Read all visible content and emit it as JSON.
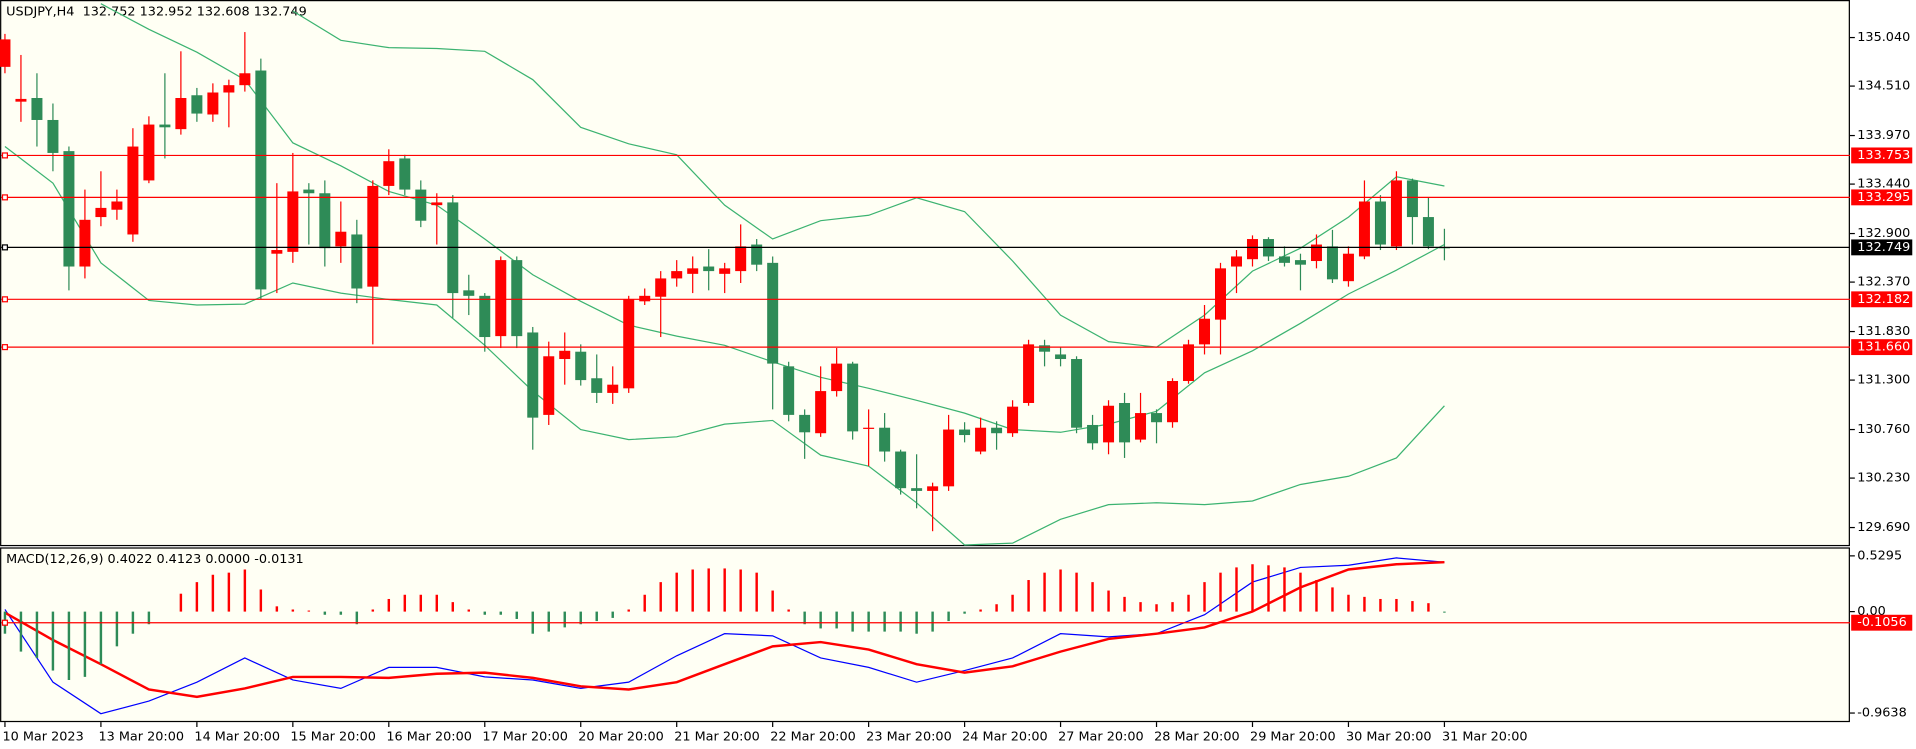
{
  "chart_data": [
    {
      "type": "candlestick",
      "title": "USDJPY,H4  132.752 132.952 132.608 132.749",
      "categories": [
        "10 Mar 2023",
        null,
        null,
        null,
        null,
        null,
        "13 Mar 20:00",
        null,
        null,
        null,
        null,
        null,
        "14 Mar 20:00",
        null,
        null,
        null,
        null,
        null,
        "15 Mar 20:00",
        null,
        null,
        null,
        null,
        null,
        "16 Mar 20:00",
        null,
        null,
        null,
        null,
        null,
        "17 Mar 20:00",
        null,
        null,
        null,
        null,
        null,
        "20 Mar 20:00",
        null,
        null,
        null,
        null,
        null,
        "21 Mar 20:00",
        null,
        null,
        null,
        null,
        null,
        "22 Mar 20:00",
        null,
        null,
        null,
        null,
        null,
        "23 Mar 20:00",
        null,
        null,
        null,
        null,
        null,
        "24 Mar 20:00",
        null,
        null,
        null,
        null,
        null,
        "27 Mar 20:00",
        null,
        null,
        null,
        null,
        null,
        "28 Mar 20:00",
        null,
        null,
        null,
        null,
        null,
        "29 Mar 20:00",
        null,
        null,
        null,
        null,
        null,
        "30 Mar 20:00",
        null,
        null,
        null,
        null,
        null,
        "31 Mar 20:00"
      ],
      "open": [
        134.72,
        134.34,
        134.38,
        134.14,
        133.8,
        132.54,
        133.08,
        133.16,
        132.89,
        133.48,
        134.09,
        134.04,
        134.41,
        134.2,
        134.44,
        134.52,
        134.68,
        132.68,
        132.7,
        133.38,
        133.34,
        132.76,
        132.89,
        132.32,
        133.42,
        133.72,
        133.38,
        133.21,
        133.24,
        132.28,
        132.22,
        131.78,
        132.61,
        131.82,
        130.92,
        131.53,
        131.61,
        131.32,
        131.16,
        131.21,
        132.16,
        132.21,
        132.41,
        132.46,
        132.54,
        132.46,
        132.49,
        132.78,
        132.58,
        131.45,
        130.92,
        130.72,
        131.18,
        131.48,
        130.77,
        130.78,
        130.52,
        130.12,
        130.09,
        130.14,
        130.76,
        130.52,
        130.78,
        130.72,
        131.05,
        131.68,
        131.58,
        131.53,
        130.81,
        130.62,
        131.05,
        130.65,
        130.94,
        130.84,
        131.29,
        131.69,
        131.96,
        132.54,
        132.62,
        132.84,
        132.65,
        132.61,
        132.6,
        132.76,
        132.38,
        132.65,
        133.25,
        132.76,
        133.48,
        133.08,
        132.752
      ],
      "high": [
        135.08,
        134.85,
        134.65,
        134.32,
        133.85,
        133.38,
        133.58,
        133.38,
        134.05,
        134.18,
        134.65,
        134.89,
        134.49,
        134.54,
        134.58,
        135.1,
        134.81,
        133.45,
        133.78,
        133.45,
        133.48,
        133.25,
        133.05,
        133.48,
        133.82,
        133.76,
        133.48,
        133.34,
        133.32,
        132.45,
        132.25,
        132.65,
        132.65,
        131.88,
        131.72,
        131.82,
        131.69,
        131.58,
        131.45,
        132.22,
        132.3,
        132.49,
        132.61,
        132.65,
        132.73,
        132.58,
        133.0,
        132.84,
        132.65,
        131.5,
        130.98,
        131.45,
        131.65,
        131.5,
        130.98,
        130.94,
        130.54,
        130.49,
        130.18,
        130.92,
        130.84,
        130.89,
        130.85,
        131.08,
        131.74,
        131.74,
        131.66,
        131.56,
        130.92,
        131.08,
        131.16,
        131.16,
        130.98,
        131.32,
        131.74,
        132.12,
        132.58,
        132.72,
        132.88,
        132.86,
        132.76,
        132.68,
        132.89,
        132.94,
        132.76,
        133.48,
        133.32,
        133.58,
        133.5,
        133.29,
        132.952
      ],
      "low": [
        134.65,
        134.12,
        133.85,
        133.58,
        132.28,
        132.41,
        132.98,
        133.05,
        132.81,
        133.45,
        133.72,
        133.98,
        134.12,
        134.12,
        134.06,
        134.45,
        132.18,
        132.25,
        132.58,
        132.78,
        132.54,
        132.58,
        132.14,
        131.69,
        133.32,
        133.32,
        132.97,
        132.78,
        131.98,
        132.01,
        131.61,
        131.65,
        131.65,
        130.54,
        130.81,
        131.25,
        131.24,
        131.05,
        131.04,
        131.16,
        132.12,
        131.77,
        132.32,
        132.25,
        132.28,
        132.25,
        132.36,
        132.49,
        130.98,
        130.85,
        130.44,
        130.68,
        131.12,
        130.65,
        130.36,
        130.41,
        130.05,
        129.9,
        129.65,
        130.09,
        130.62,
        130.49,
        130.54,
        130.68,
        131.02,
        131.45,
        131.45,
        130.72,
        130.54,
        130.49,
        130.45,
        130.62,
        130.61,
        130.78,
        131.26,
        131.58,
        131.58,
        132.25,
        132.54,
        132.6,
        132.54,
        132.28,
        132.52,
        132.36,
        132.32,
        132.62,
        132.72,
        132.72,
        132.78,
        132.73,
        132.608
      ],
      "close": [
        135.02,
        134.37,
        134.14,
        133.78,
        132.54,
        133.05,
        133.18,
        133.25,
        133.85,
        134.09,
        134.06,
        134.38,
        134.21,
        134.44,
        134.52,
        134.65,
        132.29,
        132.72,
        133.36,
        133.34,
        132.74,
        132.92,
        132.3,
        133.42,
        133.69,
        133.38,
        133.04,
        133.24,
        132.25,
        132.22,
        131.77,
        132.61,
        131.78,
        130.89,
        131.56,
        131.62,
        131.3,
        131.16,
        131.25,
        132.18,
        132.22,
        132.41,
        132.49,
        132.52,
        132.49,
        132.52,
        132.76,
        132.56,
        131.48,
        130.92,
        130.73,
        131.18,
        131.48,
        130.74,
        130.78,
        130.52,
        130.12,
        130.09,
        130.14,
        130.76,
        130.7,
        130.78,
        130.72,
        131.01,
        131.69,
        131.61,
        131.53,
        130.78,
        130.61,
        131.02,
        130.62,
        130.94,
        130.84,
        131.29,
        131.69,
        131.97,
        132.52,
        132.65,
        132.84,
        132.65,
        132.58,
        132.56,
        132.78,
        132.4,
        132.68,
        133.25,
        132.78,
        133.48,
        133.08,
        132.76,
        132.749
      ],
      "up_color": "#ff0000",
      "down_color": "#2e8b57",
      "lines": [
        {
          "color": "#3cb371",
          "x": [
            0,
            3,
            6,
            9,
            12,
            15,
            18,
            21,
            24,
            27,
            30,
            33,
            36,
            39,
            42,
            45,
            48,
            51,
            54,
            57,
            60,
            63,
            66,
            69,
            72,
            75,
            78,
            81,
            84,
            87,
            90
          ],
          "values": [
            null,
            null,
            null,
            null,
            null,
            null,
            135.33,
            135.01,
            134.93,
            134.92,
            134.89,
            134.58,
            134.06,
            133.88,
            133.76,
            133.21,
            132.84,
            133.04,
            133.1,
            133.29,
            133.14,
            132.6,
            132.01,
            131.72,
            131.66,
            132.01,
            132.49,
            132.74,
            133.08,
            133.52,
            133.42
          ]
        },
        {
          "color": "#3cb371",
          "x": [
            0,
            3,
            6,
            9,
            12,
            15,
            18,
            21,
            24,
            27,
            30,
            33,
            36,
            39,
            42,
            45,
            48,
            51,
            54,
            57,
            60,
            63,
            66,
            69,
            72,
            75,
            78,
            81,
            84,
            87,
            90
          ],
          "values": [
            null,
            null,
            135.41,
            135.13,
            134.88,
            134.58,
            133.89,
            133.64,
            133.36,
            133.21,
            132.84,
            132.45,
            132.16,
            131.9,
            131.78,
            131.68,
            131.5,
            131.33,
            131.21,
            131.08,
            130.94,
            130.76,
            130.73,
            130.82,
            130.96,
            131.38,
            131.62,
            131.92,
            132.24,
            132.5,
            132.78
          ]
        },
        {
          "color": "#3cb371",
          "x": [
            0,
            3,
            6,
            9,
            12,
            15,
            18,
            21,
            24,
            27,
            30,
            33,
            36,
            39,
            42,
            45,
            48,
            51,
            54,
            57,
            60,
            63,
            66,
            69,
            72,
            75,
            78,
            81,
            84,
            87,
            90
          ],
          "values": [
            133.85,
            133.45,
            132.58,
            132.17,
            132.12,
            132.13,
            132.36,
            132.25,
            132.18,
            132.12,
            131.68,
            131.18,
            130.76,
            130.65,
            130.68,
            130.82,
            130.86,
            130.48,
            130.36,
            129.96,
            129.5,
            129.52,
            129.78,
            129.94,
            129.96,
            129.94,
            129.98,
            130.16,
            130.25,
            130.45,
            131.02
          ]
        }
      ],
      "ylim": [
        129.5,
        135.45
      ],
      "yticks": [
        {
          "value": 135.04,
          "label": "135.040"
        },
        {
          "value": 134.51,
          "label": "134.510"
        },
        {
          "value": 133.97,
          "label": "133.970"
        },
        {
          "value": 133.44,
          "label": "133.440"
        },
        {
          "value": 132.9,
          "label": "132.900"
        },
        {
          "value": 132.37,
          "label": "132.370"
        },
        {
          "value": 131.83,
          "label": "131.830"
        },
        {
          "value": 131.3,
          "label": "131.300"
        },
        {
          "value": 130.76,
          "label": "130.760"
        },
        {
          "value": 130.23,
          "label": "130.230"
        },
        {
          "value": 129.69,
          "label": "129.690"
        }
      ],
      "levels": [
        {
          "value": 133.753,
          "color": "#ff0000"
        },
        {
          "value": 133.295,
          "color": "#ff0000"
        },
        {
          "value": 132.749,
          "color": "#000000"
        },
        {
          "value": 132.182,
          "color": "#ff0000"
        },
        {
          "value": {
            "value": 131.66,
            "label": "131.660"
          },
          "color": "#ff0000"
        }
      ]
    },
    {
      "type": "bar",
      "title": "MACD(12,26,9) 0.4022 0.4123 0.0000 -0.0131",
      "values": [
        -0.21,
        -0.38,
        -0.44,
        -0.56,
        -0.65,
        -0.62,
        -0.5,
        -0.33,
        -0.21,
        -0.12,
        0.0,
        0.17,
        0.28,
        0.35,
        0.37,
        0.4,
        0.21,
        0.05,
        0.02,
        0.01,
        -0.03,
        -0.03,
        -0.12,
        0.02,
        0.12,
        0.16,
        0.16,
        0.16,
        0.09,
        0.02,
        -0.03,
        -0.03,
        -0.07,
        -0.21,
        -0.19,
        -0.15,
        -0.12,
        -0.09,
        -0.06,
        0.02,
        0.16,
        0.28,
        0.37,
        0.4,
        0.41,
        0.41,
        0.4,
        0.37,
        0.2,
        0.02,
        -0.12,
        -0.16,
        -0.16,
        -0.19,
        -0.19,
        -0.19,
        -0.19,
        -0.21,
        -0.19,
        -0.09,
        -0.02,
        0.02,
        0.07,
        0.16,
        0.3,
        0.37,
        0.4,
        0.37,
        0.28,
        0.2,
        0.14,
        0.09,
        0.07,
        0.09,
        0.16,
        0.28,
        0.37,
        0.42,
        0.45,
        0.44,
        0.42,
        0.37,
        0.3,
        0.23,
        0.16,
        0.14,
        0.12,
        0.12,
        0.1,
        0.08,
        -0.01
      ],
      "up_color": "#ff0000",
      "down_color": "#2e8b57",
      "lines": [
        {
          "color": "#0000ff",
          "width": 1,
          "x": [
            0,
            3,
            6,
            9,
            12,
            15,
            18,
            21,
            24,
            27,
            30,
            33,
            36,
            39,
            42,
            45,
            48,
            51,
            54,
            57,
            60,
            63,
            66,
            69,
            72,
            75,
            78,
            81,
            84,
            87,
            90
          ],
          "values": [
            0.02,
            -0.67,
            -0.97,
            -0.85,
            -0.67,
            -0.44,
            -0.65,
            -0.73,
            -0.53,
            -0.53,
            -0.62,
            -0.65,
            -0.73,
            -0.67,
            -0.42,
            -0.21,
            -0.23,
            -0.44,
            -0.53,
            -0.67,
            -0.56,
            -0.44,
            -0.21,
            -0.24,
            -0.21,
            -0.03,
            0.28,
            0.42,
            0.44,
            0.51,
            0.47
          ]
        },
        {
          "color": "#ff0000",
          "width": 2,
          "x": [
            0,
            3,
            6,
            9,
            12,
            15,
            18,
            21,
            24,
            27,
            30,
            33,
            36,
            39,
            42,
            45,
            48,
            51,
            54,
            57,
            60,
            63,
            66,
            69,
            72,
            75,
            78,
            81,
            84,
            87,
            90
          ],
          "values": [
            -0.01,
            -0.27,
            -0.5,
            -0.74,
            -0.81,
            -0.73,
            -0.62,
            -0.62,
            -0.63,
            -0.59,
            -0.58,
            -0.63,
            -0.71,
            -0.74,
            -0.67,
            -0.5,
            -0.33,
            -0.29,
            -0.36,
            -0.5,
            -0.58,
            -0.52,
            -0.38,
            -0.26,
            -0.21,
            -0.15,
            0.0,
            0.23,
            0.4,
            0.45,
            0.47
          ]
        }
      ],
      "ylim": [
        -1.05,
        0.61
      ],
      "yticks": [
        0.5295,
        {
          "value": 0,
          "label": "0.00"
        },
        -0.9638
      ],
      "levels": [
        {
          "value": -0.1056,
          "color": "#ff0000"
        }
      ]
    }
  ]
}
